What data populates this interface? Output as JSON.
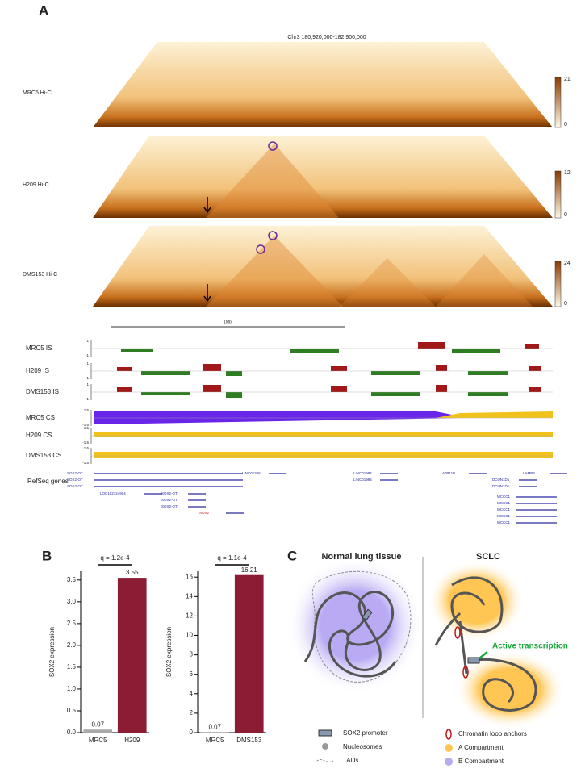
{
  "panel_a": {
    "label": "A",
    "region": "Chr3 180,920,000-182,900,000",
    "hic": [
      {
        "name": "MRC5 Hi-C",
        "max": 21,
        "min": 0
      },
      {
        "name": "H209 Hi-C",
        "max": 12,
        "min": 0
      },
      {
        "name": "DMS153 Hi-C",
        "max": 24,
        "min": 0
      }
    ],
    "scale_bar": "1Mb",
    "is_tracks": [
      "MRC5 IS",
      "H209 IS",
      "DMS153 IS"
    ],
    "is_ticks": [
      1,
      -1
    ],
    "cs_tracks": [
      "MRC5 CS",
      "H209 CS",
      "DMS153 CS"
    ],
    "cs_ticks": [
      1.5,
      -1.5
    ],
    "genes_label": "RefSeq genes",
    "genes": [
      "SOX2-OT",
      "SOX2-OT",
      "SOX2-OT",
      "LOC102724904",
      "SOX2-OT",
      "SOX2-OT",
      "SOX2-OT",
      "SOX2",
      "LINC01206",
      "LINC01994",
      "LINC01995",
      "ATP11B",
      "DCUN1D1",
      "DCUN1D1",
      "LAMP3",
      "MCCC1",
      "MCCC1",
      "MCCC1",
      "MCCC1",
      "MCCC1"
    ]
  },
  "panel_b": {
    "label": "B"
  },
  "chart_data": [
    {
      "type": "bar",
      "categories": [
        "MRC5",
        "H209"
      ],
      "values": [
        0.07,
        3.55
      ],
      "colors": [
        "#a9a9a9",
        "#8c1c33"
      ],
      "ylabel": "SOX2 expression",
      "annotation": "q = 1.2e-4",
      "ylim": [
        0,
        3.7
      ],
      "yticks": [
        {
          "value": 0,
          "label": "0.0"
        },
        0.5,
        {
          "value": 1,
          "label": "1.0"
        },
        1.5,
        {
          "value": 2,
          "label": "2.0"
        },
        2.5,
        {
          "value": 3,
          "label": "3.0"
        },
        3.5
      ]
    },
    {
      "type": "bar",
      "categories": [
        "MRC5",
        "DMS153"
      ],
      "values": [
        0.07,
        16.21
      ],
      "colors": [
        "#a9a9a9",
        "#8c1c33"
      ],
      "ylabel": "SOX2 expression",
      "annotation": "q = 1.1e-4",
      "ylim": [
        0,
        16.6
      ],
      "yticks": [
        0,
        2,
        4,
        6,
        8,
        10,
        12,
        14,
        16
      ]
    }
  ],
  "panel_c": {
    "label": "C",
    "normal_title": "Normal lung tissue",
    "sclc_title": "SCLC",
    "arrow_text": "Active transcription",
    "legend": [
      "SOX2 promoter",
      "Nucleosomes",
      "TADs",
      "Chromatin loop anchors",
      "A Compartment",
      "B Compartment"
    ]
  }
}
